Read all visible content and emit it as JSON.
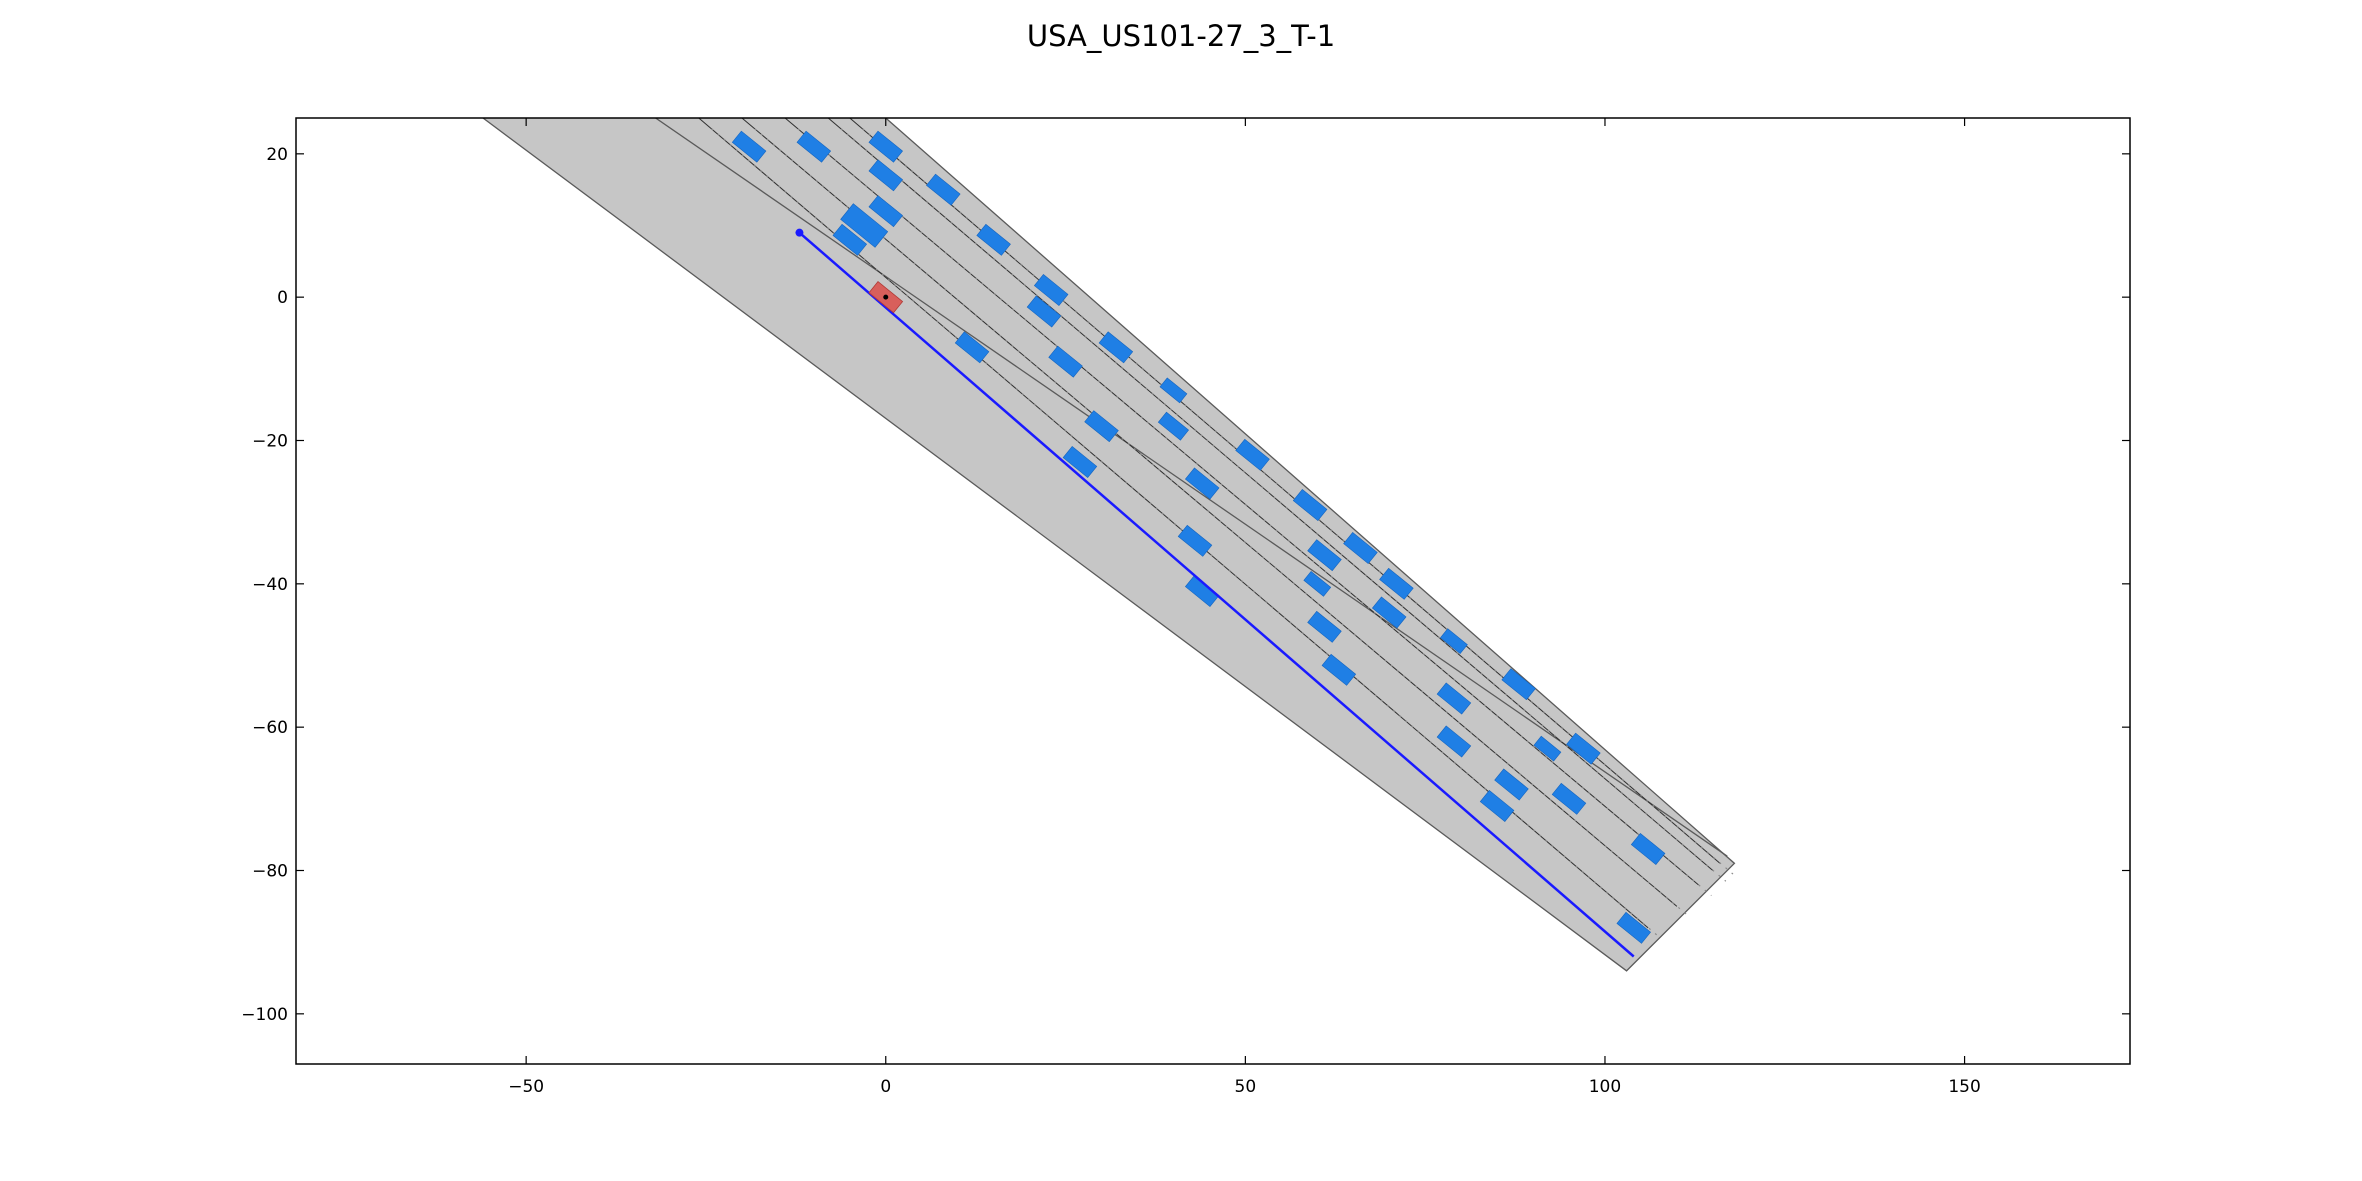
{
  "chart_data": {
    "type": "scatter",
    "title": "USA_US101-27_3_T-1",
    "xlabel": "",
    "ylabel": "",
    "xlim": [
      -82,
      173
    ],
    "ylim": [
      -107,
      25
    ],
    "xticks": [
      -50,
      0,
      50,
      100,
      150
    ],
    "yticks": [
      20,
      0,
      -20,
      -40,
      -60,
      -80,
      -100
    ],
    "xtick_labels": [
      "−50",
      "0",
      "50",
      "100",
      "150"
    ],
    "ytick_labels": [
      "20",
      "0",
      "−20",
      "−40",
      "−60",
      "−80",
      "−100"
    ],
    "grid": false,
    "colors": {
      "road": "#c6c6c6",
      "road_edge": "#5a5a5a",
      "lane_line": "#303030",
      "vehicle": "#1f7fe5",
      "ego_vehicle": "#d9534f",
      "planned_path": "#1a1aff"
    },
    "road": {
      "left_boundary": [
        [
          -32,
          25
        ],
        [
          4,
          -4
        ],
        [
          34,
          -24
        ],
        [
          66,
          -44
        ],
        [
          117,
          -78
        ]
      ],
      "right_boundary": [
        [
          0,
          25
        ],
        [
          30,
          -4
        ],
        [
          60,
          -24
        ],
        [
          92,
          -44
        ],
        [
          118,
          -79
        ],
        [
          103,
          -94
        ],
        [
          -56,
          25
        ]
      ]
    },
    "lane_lines": [
      [
        [
          -26,
          25
        ],
        [
          106,
          -88
        ]
      ],
      [
        [
          -20,
          25
        ],
        [
          111,
          -85
        ]
      ],
      [
        [
          -14,
          25
        ],
        [
          115,
          -82
        ]
      ],
      [
        [
          -8,
          25
        ],
        [
          113,
          -80
        ]
      ],
      [
        [
          -5,
          25
        ],
        [
          118,
          -79
        ]
      ]
    ],
    "vehicles": [
      {
        "x": -19,
        "y": 21,
        "angle": -39
      },
      {
        "x": -10,
        "y": 21,
        "angle": -39
      },
      {
        "x": 0,
        "y": 21,
        "angle": -39
      },
      {
        "x": 0,
        "y": 17,
        "angle": -39
      },
      {
        "x": 8,
        "y": 15,
        "angle": -39
      },
      {
        "x": -3,
        "y": 10,
        "angle": -39,
        "scale": 1.4
      },
      {
        "x": 0,
        "y": 12,
        "angle": -39
      },
      {
        "x": -5,
        "y": 8,
        "angle": -39
      },
      {
        "x": 15,
        "y": 8,
        "angle": -39
      },
      {
        "x": 23,
        "y": 1,
        "angle": -39
      },
      {
        "x": 22,
        "y": -2,
        "angle": -39
      },
      {
        "x": 32,
        "y": -7,
        "angle": -39
      },
      {
        "x": 12,
        "y": -7,
        "angle": -39
      },
      {
        "x": 25,
        "y": -9,
        "angle": -39
      },
      {
        "x": 40,
        "y": -13,
        "angle": -39,
        "scale": 0.8
      },
      {
        "x": 30,
        "y": -18,
        "angle": -39
      },
      {
        "x": 40,
        "y": -18,
        "angle": -39,
        "scale": 0.9
      },
      {
        "x": 27,
        "y": -23,
        "angle": -39
      },
      {
        "x": 51,
        "y": -22,
        "angle": -39
      },
      {
        "x": 44,
        "y": -26,
        "angle": -39
      },
      {
        "x": 59,
        "y": -29,
        "angle": -39
      },
      {
        "x": 43,
        "y": -34,
        "angle": -39
      },
      {
        "x": 61,
        "y": -36,
        "angle": -39
      },
      {
        "x": 66,
        "y": -35,
        "angle": -39
      },
      {
        "x": 71,
        "y": -40,
        "angle": -39
      },
      {
        "x": 44,
        "y": -41,
        "angle": -39
      },
      {
        "x": 60,
        "y": -40,
        "angle": -39,
        "scale": 0.8
      },
      {
        "x": 70,
        "y": -44,
        "angle": -39
      },
      {
        "x": 61,
        "y": -46,
        "angle": -39
      },
      {
        "x": 79,
        "y": -48,
        "angle": -39,
        "scale": 0.8
      },
      {
        "x": 63,
        "y": -52,
        "angle": -39
      },
      {
        "x": 88,
        "y": -54,
        "angle": -39
      },
      {
        "x": 79,
        "y": -56,
        "angle": -39
      },
      {
        "x": 79,
        "y": -62,
        "angle": -39
      },
      {
        "x": 92,
        "y": -63,
        "angle": -39,
        "scale": 0.8
      },
      {
        "x": 97,
        "y": -63,
        "angle": -39
      },
      {
        "x": 87,
        "y": -68,
        "angle": -39
      },
      {
        "x": 95,
        "y": -70,
        "angle": -39
      },
      {
        "x": 85,
        "y": -71,
        "angle": -39
      },
      {
        "x": 106,
        "y": -77,
        "angle": -39
      },
      {
        "x": 104,
        "y": -88,
        "angle": -39
      }
    ],
    "ego_vehicle": {
      "x": 0,
      "y": 0,
      "angle": -39
    },
    "planned_path": {
      "start": [
        -12,
        9
      ],
      "end": [
        104,
        -92
      ]
    }
  }
}
